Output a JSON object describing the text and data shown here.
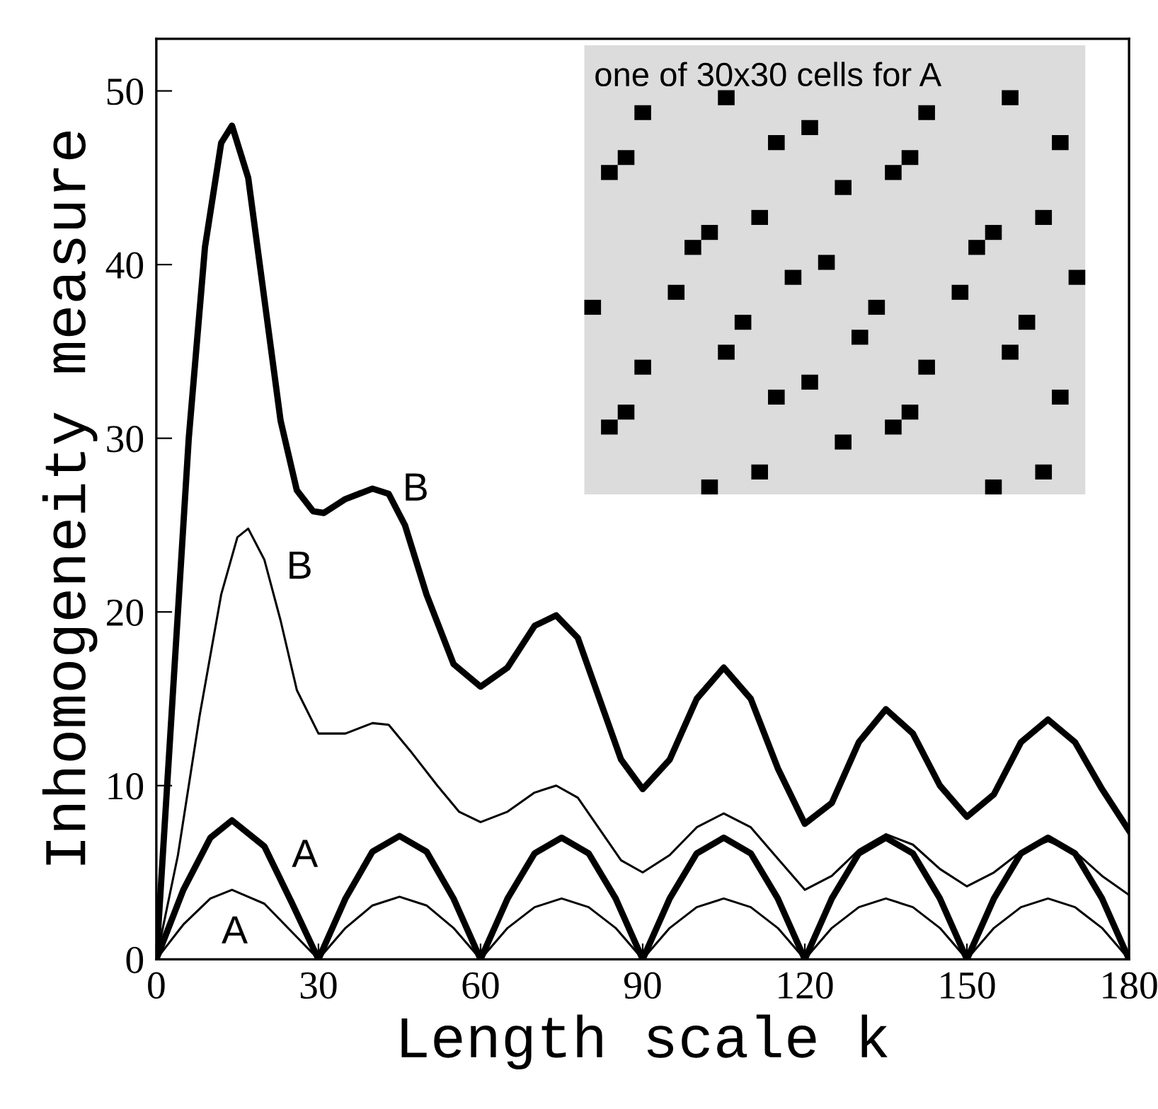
{
  "chart_data": {
    "type": "line",
    "xlabel": "Length scale k",
    "ylabel": "Inhomogeneity measure",
    "xlim": [
      0,
      180
    ],
    "xticks": [
      0,
      30,
      60,
      90,
      120,
      150,
      180
    ],
    "ylim": [
      0,
      53
    ],
    "yticks": [
      0,
      10,
      20,
      30,
      40,
      50
    ],
    "grid": false,
    "legend": false,
    "marker": "none",
    "line_style": "solid",
    "series": [
      {
        "name": "B",
        "color": "#000000",
        "x": [
          0,
          3,
          6,
          9,
          12,
          14,
          17,
          20,
          23,
          26,
          29,
          31,
          35,
          40,
          43,
          46,
          50,
          55,
          60,
          65,
          70,
          74,
          78,
          82,
          86,
          90,
          95,
          100,
          105,
          110,
          115,
          120,
          125,
          130,
          135,
          140,
          145,
          150,
          155,
          160,
          165,
          170,
          175,
          180
        ],
        "values": [
          0,
          15,
          30,
          41,
          47,
          48,
          45,
          38,
          31,
          27,
          25.8,
          25.7,
          26.5,
          27.1,
          26.8,
          25,
          21,
          17,
          15.7,
          16.8,
          19.2,
          19.8,
          18.5,
          15,
          11.5,
          9.8,
          11.5,
          15,
          16.8,
          15,
          11,
          7.8,
          9,
          12.5,
          14.4,
          13,
          10,
          8.2,
          9.5,
          12.5,
          13.8,
          12.5,
          9.8,
          7.4
        ]
      },
      {
        "name": "B",
        "color": "#000000",
        "x": [
          0,
          4,
          8,
          12,
          15,
          17,
          20,
          23,
          26,
          30,
          35,
          40,
          43,
          47,
          52,
          56,
          60,
          65,
          70,
          74,
          78,
          82,
          86,
          90,
          95,
          100,
          105,
          110,
          115,
          120,
          125,
          130,
          135,
          140,
          145,
          150,
          155,
          160,
          165,
          170,
          175,
          180
        ],
        "values": [
          0,
          6,
          14,
          21,
          24.3,
          24.8,
          23,
          19.5,
          15.5,
          13,
          13,
          13.6,
          13.5,
          12,
          10,
          8.5,
          7.9,
          8.5,
          9.6,
          10,
          9.3,
          7.5,
          5.7,
          5,
          6,
          7.6,
          8.4,
          7.6,
          5.8,
          4,
          4.8,
          6.3,
          7.2,
          6.6,
          5.2,
          4.2,
          5,
          6.2,
          6.8,
          6.2,
          4.8,
          3.7
        ]
      },
      {
        "name": "A",
        "color": "#000000",
        "x": [
          0,
          5,
          10,
          14,
          20,
          25,
          30,
          35,
          40,
          45,
          50,
          55,
          60,
          65,
          70,
          75,
          80,
          85,
          90,
          95,
          100,
          105,
          110,
          115,
          120,
          125,
          130,
          135,
          140,
          145,
          150,
          155,
          160,
          165,
          170,
          175,
          180
        ],
        "values": [
          0,
          4,
          7,
          8,
          6.5,
          3.3,
          0,
          3.5,
          6.2,
          7.1,
          6.2,
          3.5,
          0,
          3.5,
          6.1,
          7,
          6.1,
          3.5,
          0,
          3.5,
          6.1,
          7,
          6.1,
          3.5,
          0,
          3.5,
          6.1,
          7,
          6.1,
          3.5,
          0,
          3.5,
          6.1,
          7,
          6.1,
          3.5,
          0
        ]
      },
      {
        "name": "A",
        "color": "#000000",
        "x": [
          0,
          5,
          10,
          14,
          20,
          25,
          30,
          35,
          40,
          45,
          50,
          55,
          60,
          65,
          70,
          75,
          80,
          85,
          90,
          95,
          100,
          105,
          110,
          115,
          120,
          125,
          130,
          135,
          140,
          145,
          150,
          155,
          160,
          165,
          170,
          175,
          180
        ],
        "values": [
          0,
          2,
          3.5,
          4,
          3.2,
          1.6,
          0,
          1.8,
          3.1,
          3.6,
          3.1,
          1.8,
          0,
          1.8,
          3,
          3.5,
          3,
          1.8,
          0,
          1.8,
          3,
          3.5,
          3,
          1.8,
          0,
          1.8,
          3,
          3.5,
          3,
          1.8,
          0,
          1.8,
          3,
          3.5,
          3,
          1.8,
          0
        ]
      }
    ],
    "annotations": [
      "one of 30x30 cells for A"
    ]
  }
}
